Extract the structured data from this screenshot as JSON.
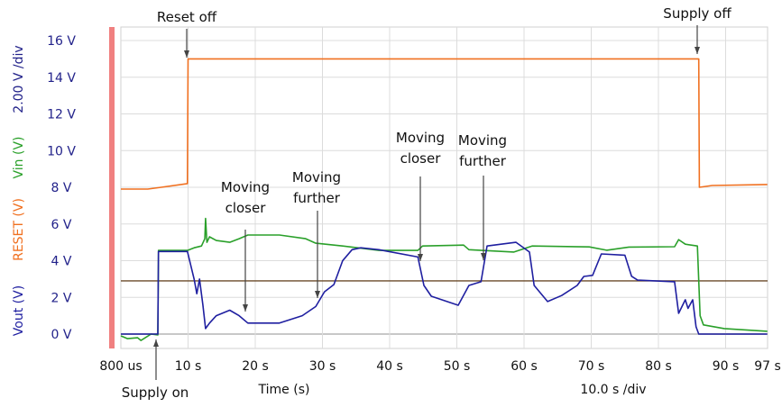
{
  "chart_data": {
    "type": "line",
    "xlabel": "Time (s)",
    "x_scale_label": "10.0 s /div",
    "y_scale_label": "2.00 V /div",
    "ylabels": [
      {
        "text": "Vout (V)",
        "color": "#1f1fa0"
      },
      {
        "text": "RESET (V)",
        "color": "#f07020"
      },
      {
        "text": "Vin (V)",
        "color": "#2aa02a"
      }
    ],
    "xlim": [
      0,
      97
    ],
    "ylim": [
      -0.5,
      16.5
    ],
    "grid": true,
    "x_ticks": [
      {
        "value": 0,
        "label": "800 us"
      },
      {
        "value": 10,
        "label": "10 s"
      },
      {
        "value": 20,
        "label": "20 s"
      },
      {
        "value": 30,
        "label": "30 s"
      },
      {
        "value": 40,
        "label": "40 s"
      },
      {
        "value": 50,
        "label": "50 s"
      },
      {
        "value": 60,
        "label": "60 s"
      },
      {
        "value": 70,
        "label": "70 s"
      },
      {
        "value": 80,
        "label": "80 s"
      },
      {
        "value": 90,
        "label": "90 s"
      },
      {
        "value": 97,
        "label": "97 s"
      }
    ],
    "y_ticks": [
      {
        "value": 0,
        "label": "0 V"
      },
      {
        "value": 2,
        "label": "2 V"
      },
      {
        "value": 4,
        "label": "4 V"
      },
      {
        "value": 6,
        "label": "6 V"
      },
      {
        "value": 8,
        "label": "8 V"
      },
      {
        "value": 10,
        "label": "10 V"
      },
      {
        "value": 12,
        "label": "12 V"
      },
      {
        "value": 14,
        "label": "14 V"
      },
      {
        "value": 16,
        "label": "16 V"
      }
    ],
    "threshold": {
      "value": 2.9,
      "color": "#6b4a2a"
    },
    "series": [
      {
        "name": "RESET (V)",
        "color": "#f07020",
        "points": [
          [
            0,
            7.9
          ],
          [
            4,
            7.9
          ],
          [
            6,
            8.0
          ],
          [
            9.9,
            8.2
          ],
          [
            10,
            15.0
          ],
          [
            40,
            15.0
          ],
          [
            86,
            15.0
          ],
          [
            86.1,
            8.0
          ],
          [
            88,
            8.1
          ],
          [
            96.2,
            8.15
          ]
        ]
      },
      {
        "name": "Vin (V)",
        "color": "#2aa02a",
        "points": [
          [
            0,
            -0.1
          ],
          [
            1,
            -0.25
          ],
          [
            2.5,
            -0.2
          ],
          [
            3,
            -0.35
          ],
          [
            4.5,
            0.0
          ],
          [
            5.5,
            -0.05
          ],
          [
            5.6,
            4.56
          ],
          [
            9.9,
            4.56
          ],
          [
            10.9,
            4.7
          ],
          [
            12,
            4.8
          ],
          [
            12.5,
            5.2
          ],
          [
            12.6,
            6.3
          ],
          [
            12.8,
            5.0
          ],
          [
            13.2,
            5.3
          ],
          [
            14.2,
            5.1
          ],
          [
            16.2,
            5.0
          ],
          [
            17.6,
            5.2
          ],
          [
            18.9,
            5.4
          ],
          [
            23.6,
            5.4
          ],
          [
            27.5,
            5.2
          ],
          [
            29,
            4.95
          ],
          [
            33,
            4.8
          ],
          [
            38.4,
            4.56
          ],
          [
            44.2,
            4.56
          ],
          [
            44.9,
            4.8
          ],
          [
            51,
            4.85
          ],
          [
            51.8,
            4.6
          ],
          [
            58.5,
            4.47
          ],
          [
            61.2,
            4.8
          ],
          [
            69.7,
            4.75
          ],
          [
            72.3,
            4.57
          ],
          [
            75.6,
            4.74
          ],
          [
            82.4,
            4.76
          ],
          [
            83,
            5.15
          ],
          [
            84,
            4.9
          ],
          [
            85.8,
            4.8
          ],
          [
            86.2,
            1.0
          ],
          [
            86.7,
            0.5
          ],
          [
            89.8,
            0.3
          ],
          [
            96.2,
            0.15
          ]
        ]
      },
      {
        "name": "Vout (V)",
        "color": "#1f1fa0",
        "points": [
          [
            0,
            0
          ],
          [
            5.5,
            0
          ],
          [
            5.6,
            4.5
          ],
          [
            9.9,
            4.5
          ],
          [
            10.9,
            3.0
          ],
          [
            11.3,
            2.2
          ],
          [
            11.7,
            3.0
          ],
          [
            12.2,
            1.6
          ],
          [
            12.6,
            0.3
          ],
          [
            13.2,
            0.6
          ],
          [
            14.2,
            1.0
          ],
          [
            16.2,
            1.3
          ],
          [
            17.6,
            1.0
          ],
          [
            18.9,
            0.6
          ],
          [
            23.6,
            0.6
          ],
          [
            27,
            1.0
          ],
          [
            29,
            1.5
          ],
          [
            30.3,
            2.3
          ],
          [
            31.7,
            2.7
          ],
          [
            33,
            4.0
          ],
          [
            34.4,
            4.6
          ],
          [
            35.7,
            4.7
          ],
          [
            38.4,
            4.6
          ],
          [
            44.2,
            4.2
          ],
          [
            45.1,
            2.65
          ],
          [
            46.2,
            2.06
          ],
          [
            50.2,
            1.57
          ],
          [
            51.8,
            2.65
          ],
          [
            53.6,
            2.85
          ],
          [
            54.5,
            4.8
          ],
          [
            58.8,
            5.0
          ],
          [
            60.8,
            4.47
          ],
          [
            61.5,
            2.65
          ],
          [
            63.5,
            1.77
          ],
          [
            65.6,
            2.1
          ],
          [
            67.9,
            2.65
          ],
          [
            68.9,
            3.14
          ],
          [
            70.2,
            3.2
          ],
          [
            71.5,
            4.37
          ],
          [
            75,
            4.3
          ],
          [
            76,
            3.15
          ],
          [
            76.9,
            2.94
          ],
          [
            82.4,
            2.85
          ],
          [
            83,
            1.13
          ],
          [
            84,
            1.87
          ],
          [
            84.4,
            1.4
          ],
          [
            85.1,
            1.87
          ],
          [
            85.6,
            0.4
          ],
          [
            86,
            0
          ],
          [
            96.2,
            0
          ]
        ]
      }
    ],
    "annotations": [
      {
        "id": "reset-off",
        "lines": [
          "Reset off"
        ]
      },
      {
        "id": "supply-off",
        "lines": [
          "Supply off"
        ]
      },
      {
        "id": "supply-on",
        "lines": [
          "Supply on"
        ]
      },
      {
        "id": "moving-closer-1",
        "lines": [
          "Moving",
          "closer"
        ]
      },
      {
        "id": "moving-further-1",
        "lines": [
          "Moving",
          "further"
        ]
      },
      {
        "id": "moving-closer-2",
        "lines": [
          "Moving",
          "closer"
        ]
      },
      {
        "id": "moving-further-2",
        "lines": [
          "Moving",
          "further"
        ]
      }
    ]
  }
}
